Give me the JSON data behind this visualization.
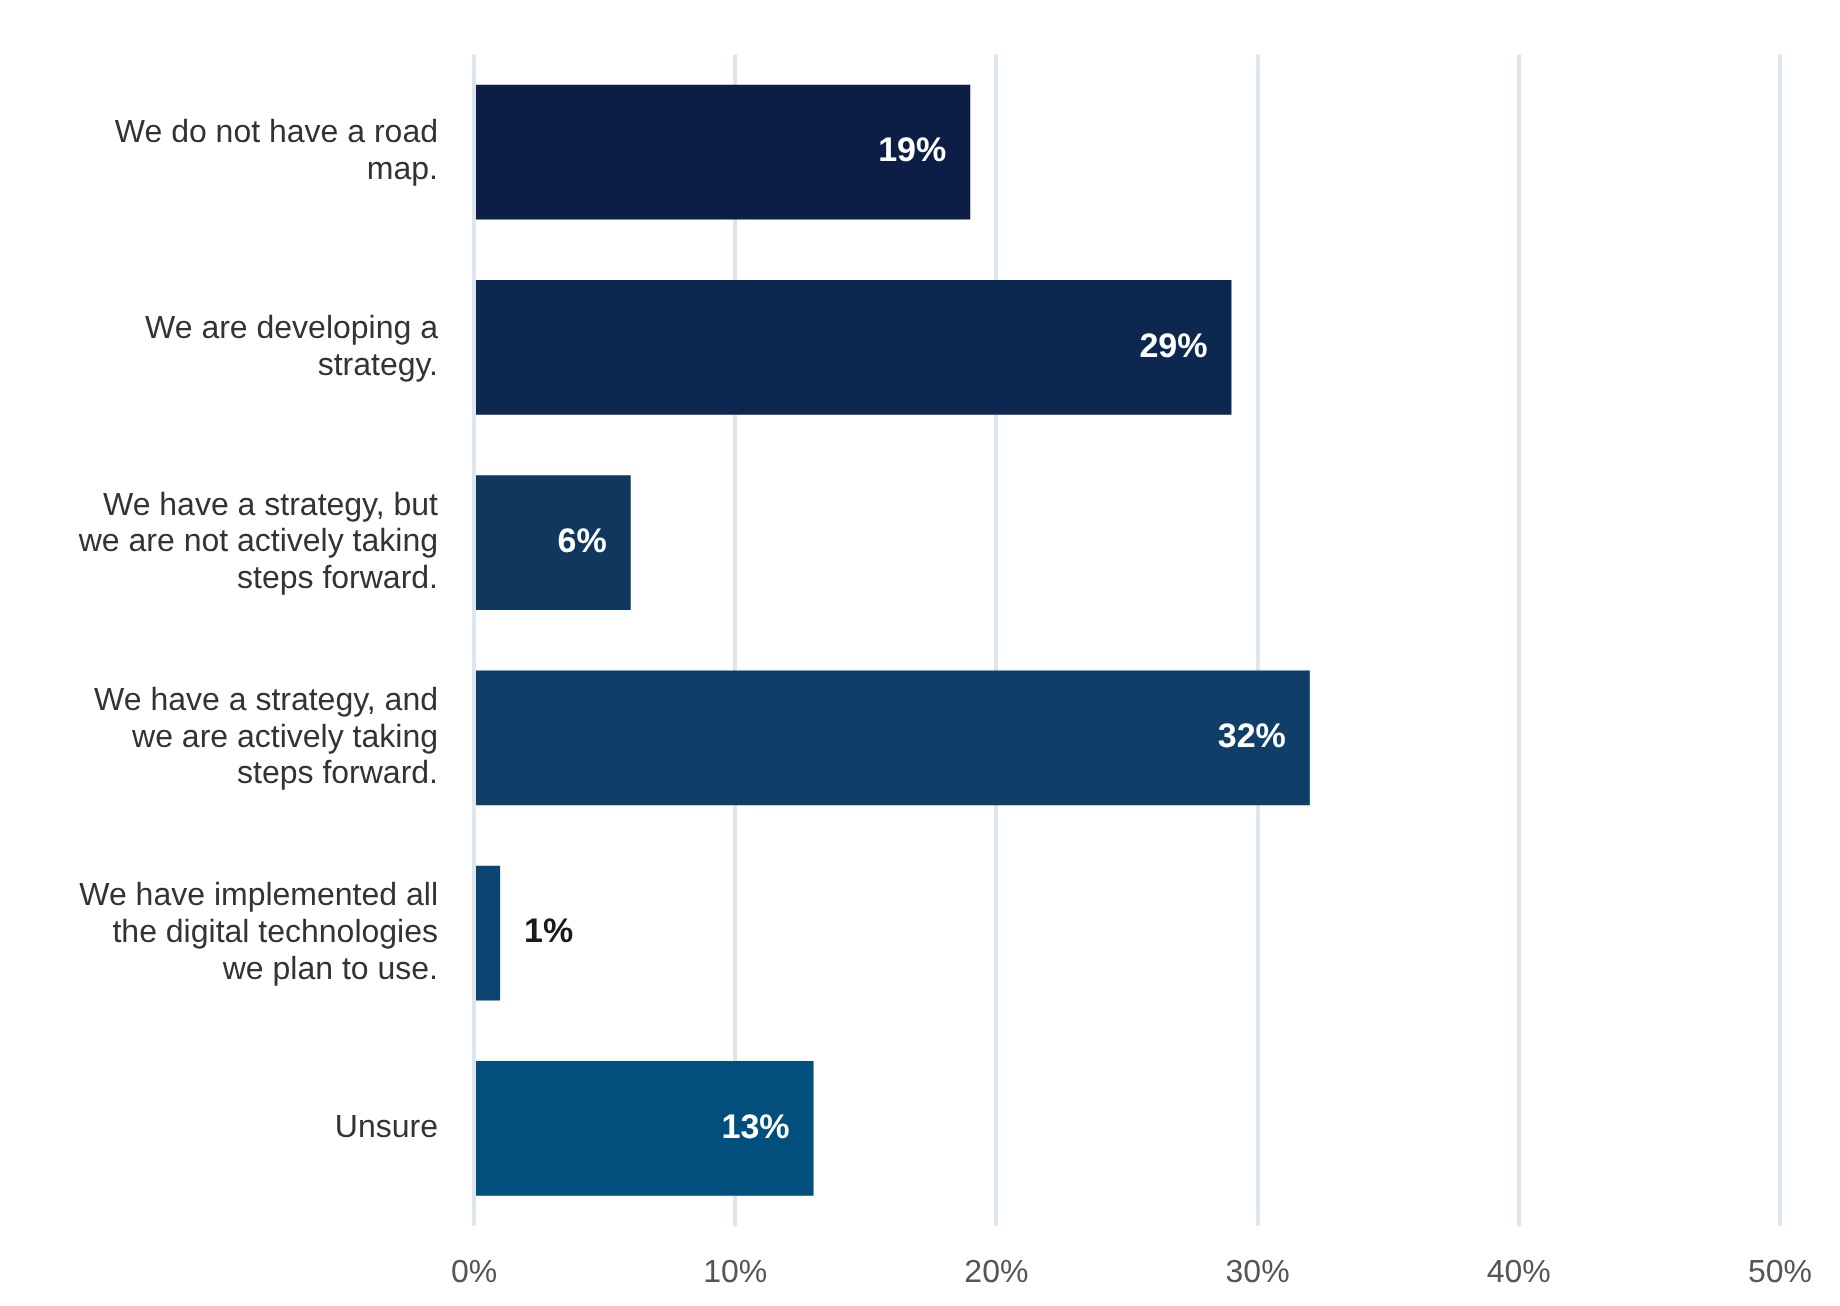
{
  "chart_data": {
    "type": "bar",
    "orientation": "horizontal",
    "categories": [
      "We do not have a road map.",
      "We are developing a strategy.",
      "We have a strategy, but we are not actively taking steps forward.",
      "We have a strategy, and we are actively taking steps forward.",
      "We have implemented all the digital technologies we plan to use.",
      "Unsure"
    ],
    "values": [
      19,
      29,
      6,
      32,
      1,
      13
    ],
    "colors": [
      "#0c1e45",
      "#0d2850",
      "#10375e",
      "#0f3f68",
      "#0b4672",
      "#024f7d"
    ],
    "value_labels": [
      "19%",
      "29%",
      "6%",
      "32%",
      "1%",
      "13%"
    ],
    "xlim": [
      0,
      50
    ],
    "xticks": [
      {
        "value": 0,
        "label": "0%"
      },
      {
        "value": 10,
        "label": "10%"
      },
      {
        "value": 20,
        "label": "20%"
      },
      {
        "value": 30,
        "label": "30%"
      },
      {
        "value": 40,
        "label": "40%"
      },
      {
        "value": 50,
        "label": "50%"
      }
    ],
    "grid": "x",
    "legend": false
  }
}
